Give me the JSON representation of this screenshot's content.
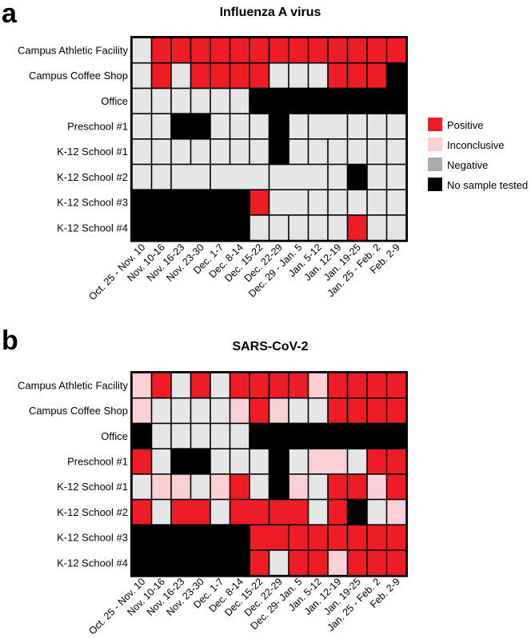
{
  "legend": [
    {
      "key": "P",
      "label": "Positive",
      "color": "#ee1c25"
    },
    {
      "key": "I",
      "label": "Inconclusive",
      "color": "#fbd0d4"
    },
    {
      "key": "N",
      "label": "Negative",
      "color": "#e6e6e6",
      "swatch_color": "#aaaaaa"
    },
    {
      "key": "X",
      "label": "No sample tested",
      "color": "#000000"
    }
  ],
  "chart_data": [
    {
      "type": "heatmap",
      "panel": "a",
      "title": "Influenza A virus",
      "rows": [
        "Campus Athletic Facility",
        "Campus Coffee Shop",
        "Office",
        "Preschool #1",
        "K-12 School #1",
        "K-12 School #2",
        "K-12 School #3",
        "K-12 School #4"
      ],
      "columns": [
        "Oct. 25 - Nov. 10",
        "Nov. 10-16",
        "Nov. 16-23",
        "Nov. 23-30",
        "Dec. 1-7",
        "Dec. 8-14",
        "Dec. 15-22",
        "Dec. 22-29",
        "Dec. 29 - Jan. 5",
        "Jan. 5-12",
        "Jan. 12-19",
        "Jan. 19-25",
        "Jan. 25 - Feb. 2",
        "Feb. 2-9"
      ],
      "cells": [
        [
          "N",
          "P",
          "P",
          "P",
          "P",
          "P",
          "P",
          "P",
          "P",
          "P",
          "P",
          "P",
          "P",
          "P"
        ],
        [
          "N",
          "P",
          "N",
          "P",
          "P",
          "P",
          "P",
          "N",
          "N",
          "N",
          "P",
          "P",
          "P",
          "X"
        ],
        [
          "N",
          "N",
          "N",
          "N",
          "N",
          "N",
          "X",
          "X",
          "X",
          "X",
          "X",
          "X",
          "X",
          "X"
        ],
        [
          "N",
          "N",
          "X",
          "X",
          "N",
          "N",
          "N",
          "X",
          "N",
          "N",
          "N",
          "N",
          "N",
          "N"
        ],
        [
          "N",
          "N",
          "N",
          "N",
          "N",
          "N",
          "N",
          "X",
          "N",
          "N",
          "N",
          "N",
          "N",
          "N"
        ],
        [
          "N",
          "N",
          "N",
          "N",
          "N",
          "N",
          "N",
          "N",
          "N",
          "N",
          "N",
          "X",
          "N",
          "N"
        ],
        [
          "X",
          "X",
          "X",
          "X",
          "X",
          "X",
          "P",
          "N",
          "N",
          "N",
          "N",
          "N",
          "N",
          "N"
        ],
        [
          "X",
          "X",
          "X",
          "X",
          "X",
          "X",
          "N",
          "N",
          "N",
          "N",
          "N",
          "P",
          "N",
          "N"
        ]
      ],
      "merges": [
        {
          "r": 2,
          "c": 6,
          "span": 8,
          "value": "X"
        },
        {
          "r": 3,
          "c": 2,
          "span": 2,
          "value": "X"
        },
        {
          "r": 3,
          "c": 9,
          "span": 2,
          "value": "N"
        },
        {
          "r": 5,
          "c": 2,
          "span": 2,
          "value": "N"
        },
        {
          "r": 5,
          "c": 4,
          "span": 3,
          "value": "N"
        },
        {
          "r": 5,
          "c": 7,
          "span": 3,
          "value": "N"
        },
        {
          "r": 6,
          "c": 0,
          "span": 6,
          "value": "X"
        },
        {
          "r": 6,
          "c": 7,
          "span": 2,
          "value": "N"
        },
        {
          "r": 7,
          "c": 0,
          "span": 6,
          "value": "X"
        }
      ]
    },
    {
      "type": "heatmap",
      "panel": "b",
      "title": "SARS-CoV-2",
      "rows": [
        "Campus Athletic Facility",
        "Campus Coffee Shop",
        "Office",
        "Preschool #1",
        "K-12 School #1",
        "K-12 School #2",
        "K-12 School #3",
        "K-12 School #4"
      ],
      "columns": [
        "Oct. 25 - Nov. 10",
        "Nov. 10-16",
        "Nov. 16-23",
        "Nov. 23-30",
        "Dec. 1-7",
        "Dec. 8-14",
        "Dec. 15-22",
        "Dec. 22-29",
        "Dec. 29- Jan. 5",
        "Jan. 5-12",
        "Jan. 12-19",
        "Jan. 19-25",
        "Jan. 25 - Feb. 2",
        "Feb. 2-9"
      ],
      "cells": [
        [
          "I",
          "P",
          "N",
          "P",
          "N",
          "P",
          "P",
          "P",
          "P",
          "I",
          "P",
          "P",
          "P",
          "P"
        ],
        [
          "I",
          "N",
          "N",
          "N",
          "N",
          "I",
          "P",
          "I",
          "N",
          "N",
          "P",
          "P",
          "P",
          "P"
        ],
        [
          "X",
          "N",
          "N",
          "N",
          "N",
          "N",
          "X",
          "X",
          "X",
          "X",
          "X",
          "X",
          "X",
          "X"
        ],
        [
          "P",
          "N",
          "X",
          "X",
          "N",
          "N",
          "N",
          "X",
          "N",
          "I",
          "I",
          "N",
          "P",
          "P"
        ],
        [
          "N",
          "I",
          "I",
          "N",
          "I",
          "P",
          "N",
          "X",
          "I",
          "N",
          "P",
          "P",
          "I",
          "P"
        ],
        [
          "P",
          "N",
          "P",
          "P",
          "N",
          "P",
          "P",
          "P",
          "P",
          "N",
          "P",
          "X",
          "N",
          "I"
        ],
        [
          "X",
          "X",
          "X",
          "X",
          "X",
          "X",
          "P",
          "P",
          "P",
          "P",
          "P",
          "P",
          "P",
          "P"
        ],
        [
          "X",
          "X",
          "X",
          "X",
          "X",
          "X",
          "P",
          "N",
          "P",
          "P",
          "I",
          "P",
          "P",
          "P"
        ]
      ],
      "merges": [
        {
          "r": 2,
          "c": 6,
          "span": 8,
          "value": "X"
        },
        {
          "r": 3,
          "c": 2,
          "span": 2,
          "value": "X"
        },
        {
          "r": 3,
          "c": 9,
          "span": 2,
          "value": "I"
        },
        {
          "r": 5,
          "c": 2,
          "span": 2,
          "value": "P"
        },
        {
          "r": 5,
          "c": 5,
          "span": 2,
          "value": "P"
        },
        {
          "r": 5,
          "c": 7,
          "span": 2,
          "value": "P"
        },
        {
          "r": 6,
          "c": 0,
          "span": 6,
          "value": "X"
        },
        {
          "r": 6,
          "c": 6,
          "span": 2,
          "value": "P"
        },
        {
          "r": 7,
          "c": 0,
          "span": 6,
          "value": "X"
        }
      ]
    }
  ]
}
